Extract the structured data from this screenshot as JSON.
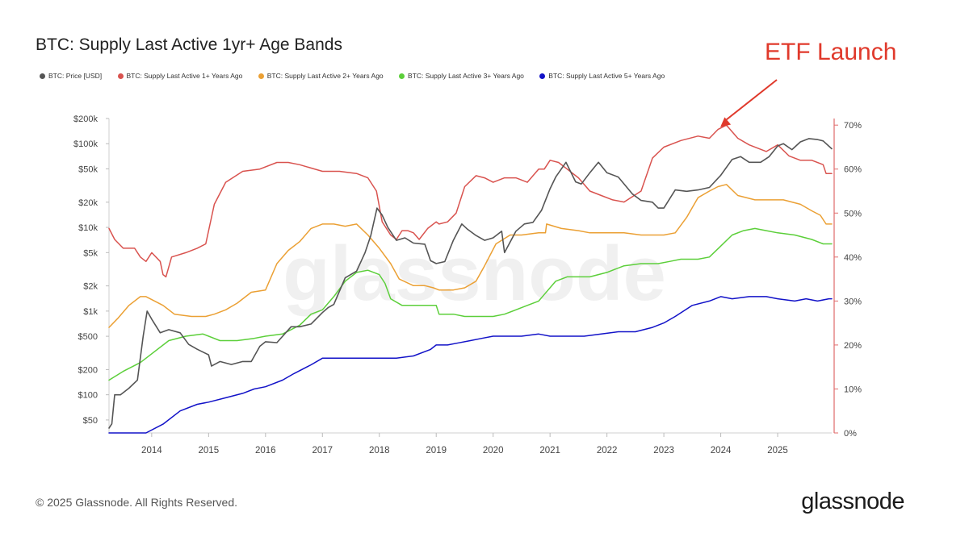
{
  "colors": {
    "price": "#555555",
    "band1": "#d9534f",
    "band2": "#eba034",
    "band3": "#5ccf3a",
    "band5": "#1212c8",
    "annotation": "#e0392b",
    "right_axis": "#e06a6a"
  },
  "chart_data": {
    "type": "line",
    "title": "BTC: Supply Last Active 1yr+ Age Bands",
    "legend_position": "top-left",
    "watermark": "glassnode",
    "x_axis": {
      "range": [
        2013.25,
        2025.95
      ],
      "ticks": [
        "2014",
        "2015",
        "2016",
        "2017",
        "2018",
        "2019",
        "2020",
        "2021",
        "2022",
        "2023",
        "2024",
        "2025"
      ]
    },
    "y_left": {
      "scale": "log",
      "range": [
        35,
        200000
      ],
      "ticks": [
        {
          "value": 50,
          "label": "$50"
        },
        {
          "value": 100,
          "label": "$100"
        },
        {
          "value": 200,
          "label": "$200"
        },
        {
          "value": 500,
          "label": "$500"
        },
        {
          "value": 1000,
          "label": "$1k"
        },
        {
          "value": 2000,
          "label": "$2k"
        },
        {
          "value": 5000,
          "label": "$5k"
        },
        {
          "value": 10000,
          "label": "$10k"
        },
        {
          "value": 20000,
          "label": "$20k"
        },
        {
          "value": 50000,
          "label": "$50k"
        },
        {
          "value": 100000,
          "label": "$100k"
        },
        {
          "value": 200000,
          "label": "$200k"
        }
      ]
    },
    "y_right": {
      "range": [
        0,
        70
      ],
      "ticks": [
        {
          "value": 0,
          "label": "0%"
        },
        {
          "value": 10,
          "label": "10%"
        },
        {
          "value": 20,
          "label": "20%"
        },
        {
          "value": 30,
          "label": "30%"
        },
        {
          "value": 40,
          "label": "40%"
        },
        {
          "value": 50,
          "label": "50%"
        },
        {
          "value": 60,
          "label": "60%"
        },
        {
          "value": 70,
          "label": "70%"
        }
      ]
    },
    "series": [
      {
        "name": "BTC: Price [USD]",
        "axis": "left",
        "color_key": "price",
        "x": [
          2013.25,
          2013.3,
          2013.35,
          2013.45,
          2013.6,
          2013.75,
          2013.85,
          2013.92,
          2014.0,
          2014.15,
          2014.3,
          2014.5,
          2014.65,
          2014.8,
          2015.0,
          2015.05,
          2015.2,
          2015.4,
          2015.6,
          2015.75,
          2015.9,
          2016.0,
          2016.2,
          2016.45,
          2016.6,
          2016.8,
          2017.0,
          2017.1,
          2017.2,
          2017.4,
          2017.6,
          2017.75,
          2017.85,
          2017.96,
          2018.05,
          2018.15,
          2018.3,
          2018.45,
          2018.6,
          2018.8,
          2018.9,
          2019.0,
          2019.15,
          2019.3,
          2019.45,
          2019.55,
          2019.7,
          2019.85,
          2020.0,
          2020.15,
          2020.2,
          2020.4,
          2020.55,
          2020.7,
          2020.85,
          2021.0,
          2021.1,
          2021.28,
          2021.45,
          2021.55,
          2021.7,
          2021.85,
          2022.0,
          2022.2,
          2022.45,
          2022.6,
          2022.8,
          2022.9,
          2023.0,
          2023.2,
          2023.4,
          2023.6,
          2023.8,
          2024.0,
          2024.2,
          2024.35,
          2024.5,
          2024.7,
          2024.85,
          2025.0,
          2025.1,
          2025.25,
          2025.4,
          2025.55,
          2025.7,
          2025.8,
          2025.95
        ],
        "values": [
          40,
          45,
          100,
          100,
          120,
          150,
          500,
          1000,
          800,
          550,
          600,
          550,
          400,
          350,
          300,
          220,
          250,
          230,
          250,
          250,
          380,
          430,
          420,
          650,
          650,
          700,
          960,
          1100,
          1200,
          2500,
          3000,
          5000,
          8000,
          17000,
          14000,
          10000,
          7000,
          7500,
          6500,
          6300,
          4000,
          3700,
          3900,
          7000,
          11000,
          9500,
          8000,
          7000,
          7500,
          9000,
          5000,
          9000,
          11000,
          11500,
          16000,
          29000,
          40000,
          60000,
          35000,
          33000,
          45000,
          60000,
          45000,
          40000,
          25000,
          21000,
          20000,
          17000,
          17000,
          28000,
          27000,
          28000,
          30000,
          42000,
          65000,
          70000,
          60000,
          60000,
          70000,
          94000,
          100000,
          85000,
          105000,
          115000,
          112000,
          108000,
          87000
        ]
      },
      {
        "name": "BTC: Supply Last Active 1+ Years Ago",
        "axis": "right",
        "color_key": "band1",
        "x": [
          2013.25,
          2013.35,
          2013.5,
          2013.7,
          2013.8,
          2013.9,
          2014.0,
          2014.15,
          2014.2,
          2014.25,
          2014.35,
          2014.6,
          2014.8,
          2014.95,
          2015.1,
          2015.3,
          2015.6,
          2015.9,
          2016.2,
          2016.4,
          2016.6,
          2017.0,
          2017.3,
          2017.6,
          2017.8,
          2017.95,
          2018.05,
          2018.2,
          2018.3,
          2018.4,
          2018.5,
          2018.6,
          2018.7,
          2018.85,
          2019.0,
          2019.05,
          2019.2,
          2019.35,
          2019.5,
          2019.7,
          2019.85,
          2020.0,
          2020.2,
          2020.4,
          2020.6,
          2020.8,
          2020.9,
          2021.0,
          2021.15,
          2021.3,
          2021.5,
          2021.7,
          2021.9,
          2022.1,
          2022.3,
          2022.6,
          2022.8,
          2023.0,
          2023.3,
          2023.6,
          2023.8,
          2023.95,
          2024.1,
          2024.3,
          2024.5,
          2024.8,
          2025.0,
          2025.2,
          2025.4,
          2025.6,
          2025.8,
          2025.85,
          2025.95
        ],
        "values": [
          46.5,
          44,
          42,
          42,
          40,
          39,
          41,
          39,
          36,
          35.5,
          40,
          41,
          42,
          43,
          52,
          57,
          59.5,
          60,
          61.5,
          61.5,
          61,
          59.5,
          59.5,
          59,
          58,
          55,
          48,
          45,
          44,
          46,
          46,
          45.5,
          44,
          46.5,
          48,
          47.5,
          48,
          50,
          56,
          58.5,
          58,
          57,
          58,
          58,
          57,
          60,
          60,
          62,
          61.5,
          60,
          58,
          55,
          54,
          53,
          52.5,
          55,
          62.5,
          65,
          66.5,
          67.5,
          67,
          69,
          70,
          67,
          65.5,
          64,
          65.5,
          63,
          62,
          62,
          61,
          59,
          59
        ]
      },
      {
        "name": "BTC: Supply Last Active 2+ Years Ago",
        "axis": "right",
        "color_key": "band2",
        "x": [
          2013.25,
          2013.4,
          2013.6,
          2013.8,
          2013.9,
          2014.2,
          2014.4,
          2014.7,
          2014.95,
          2015.1,
          2015.3,
          2015.5,
          2015.75,
          2016.0,
          2016.2,
          2016.4,
          2016.6,
          2016.8,
          2017.0,
          2017.2,
          2017.4,
          2017.6,
          2017.8,
          2018.0,
          2018.2,
          2018.35,
          2018.6,
          2018.8,
          2018.95,
          2019.05,
          2019.3,
          2019.5,
          2019.7,
          2019.85,
          2020.05,
          2020.3,
          2020.5,
          2020.8,
          2020.92,
          2020.94,
          2021.2,
          2021.5,
          2021.7,
          2022.0,
          2022.3,
          2022.6,
          2022.9,
          2023.0,
          2023.2,
          2023.4,
          2023.6,
          2023.8,
          2023.95,
          2024.1,
          2024.3,
          2024.6,
          2024.9,
          2025.1,
          2025.4,
          2025.6,
          2025.75,
          2025.85,
          2025.95
        ],
        "values": [
          24,
          26,
          29,
          31,
          31,
          29,
          27,
          26.5,
          26.5,
          27,
          28,
          29.5,
          32,
          32.5,
          38.5,
          41.5,
          43.5,
          46.5,
          47.5,
          47.5,
          47,
          47.5,
          45,
          42,
          38.5,
          35,
          33.5,
          33.5,
          33,
          32.5,
          32.5,
          33,
          34.5,
          38,
          43,
          45,
          45,
          45.5,
          45.5,
          47.5,
          46.5,
          46,
          45.5,
          45.5,
          45.5,
          45,
          45,
          45,
          45.5,
          49,
          53.5,
          55,
          56,
          56.5,
          54,
          53,
          53,
          53,
          52,
          50.5,
          49.5,
          47.5,
          47.5
        ]
      },
      {
        "name": "BTC: Supply Last Active 3+ Years Ago",
        "axis": "right",
        "color_key": "band3",
        "x": [
          2013.25,
          2013.5,
          2013.8,
          2014.0,
          2014.3,
          2014.6,
          2014.9,
          2015.2,
          2015.5,
          2015.8,
          2016.0,
          2016.3,
          2016.6,
          2016.8,
          2017.0,
          2017.2,
          2017.4,
          2017.6,
          2017.8,
          2018.0,
          2018.1,
          2018.2,
          2018.4,
          2018.6,
          2018.8,
          2019.0,
          2019.05,
          2019.3,
          2019.5,
          2019.7,
          2020.0,
          2020.2,
          2020.4,
          2020.6,
          2020.8,
          2020.9,
          2021.1,
          2021.3,
          2021.5,
          2021.7,
          2022.0,
          2022.3,
          2022.6,
          2022.9,
          2023.1,
          2023.3,
          2023.6,
          2023.8,
          2024.0,
          2024.2,
          2024.4,
          2024.6,
          2024.8,
          2025.0,
          2025.3,
          2025.6,
          2025.8,
          2025.95
        ],
        "values": [
          12,
          14,
          16,
          18,
          21,
          22,
          22.5,
          21,
          21,
          21.5,
          22,
          22.5,
          24.5,
          27,
          28,
          31,
          34.5,
          36.5,
          37,
          36,
          34,
          30.5,
          29,
          29,
          29,
          29,
          27,
          27,
          26.5,
          26.5,
          26.5,
          27,
          28,
          29,
          30,
          31.5,
          34.5,
          35.5,
          35.5,
          35.5,
          36.5,
          38,
          38.5,
          38.5,
          39,
          39.5,
          39.5,
          40,
          42.5,
          45,
          46,
          46.5,
          46,
          45.5,
          45,
          44,
          43,
          43
        ]
      },
      {
        "name": "BTC: Supply Last Active 5+ Years Ago",
        "axis": "right",
        "color_key": "band5",
        "x": [
          2013.25,
          2013.5,
          2013.75,
          2013.9,
          2014.2,
          2014.5,
          2014.8,
          2015.0,
          2015.3,
          2015.6,
          2015.8,
          2016.0,
          2016.3,
          2016.5,
          2016.8,
          2017.0,
          2017.3,
          2017.6,
          2017.8,
          2018.0,
          2018.3,
          2018.6,
          2018.9,
          2019.0,
          2019.2,
          2019.4,
          2019.6,
          2019.8,
          2020.0,
          2020.5,
          2020.8,
          2021.0,
          2021.3,
          2021.6,
          2021.9,
          2022.2,
          2022.5,
          2022.8,
          2023.0,
          2023.2,
          2023.5,
          2023.8,
          2024.0,
          2024.2,
          2024.5,
          2024.8,
          2025.0,
          2025.3,
          2025.5,
          2025.7,
          2025.9,
          2025.95
        ],
        "values": [
          0,
          0,
          0,
          0,
          2,
          5,
          6.5,
          7,
          8,
          9,
          10,
          10.5,
          12,
          13.5,
          15.5,
          17,
          17,
          17,
          17,
          17,
          17,
          17.5,
          19,
          20,
          20,
          20.5,
          21,
          21.5,
          22,
          22,
          22.5,
          22,
          22,
          22,
          22.5,
          23,
          23,
          24,
          25,
          26.5,
          29,
          30,
          31,
          30.5,
          31,
          31,
          30.5,
          30,
          30.5,
          30,
          30.5,
          30.5
        ]
      }
    ],
    "annotations": [
      {
        "text": "ETF Launch",
        "x": 2024.0,
        "points_to_series": "BTC: Supply Last Active 1+ Years Ago"
      }
    ]
  },
  "footer": {
    "copyright": "© 2025 Glassnode. All Rights Reserved.",
    "brand": "glassnode"
  }
}
